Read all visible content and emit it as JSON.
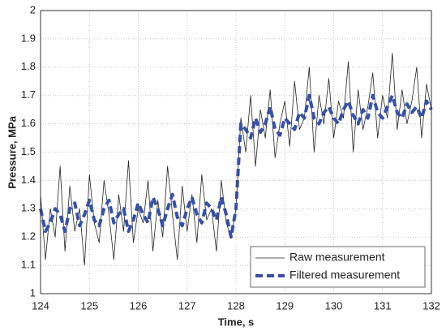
{
  "chart_data": {
    "type": "line",
    "x_label": "Time, s",
    "y_label": "Pressure, MPa",
    "x": [
      124,
      124.1,
      124.2,
      124.3,
      124.4,
      124.5,
      124.6,
      124.7,
      124.8,
      124.9,
      125,
      125.1,
      125.2,
      125.3,
      125.4,
      125.5,
      125.6,
      125.7,
      125.8,
      125.9,
      126,
      126.1,
      126.2,
      126.3,
      126.4,
      126.5,
      126.6,
      126.7,
      126.8,
      126.9,
      127,
      127.1,
      127.2,
      127.3,
      127.4,
      127.5,
      127.6,
      127.7,
      127.8,
      127.9,
      128,
      128.1,
      128.2,
      128.3,
      128.4,
      128.5,
      128.6,
      128.7,
      128.8,
      128.9,
      129,
      129.1,
      129.2,
      129.3,
      129.4,
      129.5,
      129.6,
      129.7,
      129.8,
      129.9,
      130,
      130.1,
      130.2,
      130.3,
      130.4,
      130.5,
      130.6,
      130.7,
      130.8,
      130.9,
      131,
      131.1,
      131.2,
      131.3,
      131.4,
      131.5,
      131.6,
      131.7,
      131.8,
      131.9,
      132
    ],
    "series": [
      {
        "name": "Raw measurement",
        "color": "#222222",
        "style": "solid",
        "values": [
          1.35,
          1.12,
          1.3,
          1.2,
          1.45,
          1.15,
          1.38,
          1.22,
          1.3,
          1.1,
          1.42,
          1.25,
          1.18,
          1.4,
          1.28,
          1.12,
          1.35,
          1.22,
          1.47,
          1.18,
          1.3,
          1.25,
          1.4,
          1.15,
          1.33,
          1.2,
          1.45,
          1.28,
          1.12,
          1.38,
          1.22,
          1.35,
          1.18,
          1.42,
          1.26,
          1.3,
          1.15,
          1.4,
          1.25,
          1.2,
          1.3,
          1.62,
          1.5,
          1.7,
          1.45,
          1.65,
          1.55,
          1.72,
          1.48,
          1.6,
          1.68,
          1.52,
          1.75,
          1.58,
          1.62,
          1.8,
          1.5,
          1.7,
          1.6,
          1.76,
          1.55,
          1.68,
          1.62,
          1.82,
          1.5,
          1.72,
          1.58,
          1.66,
          1.78,
          1.55,
          1.7,
          1.62,
          1.85,
          1.58,
          1.72,
          1.6,
          1.68,
          1.8,
          1.55,
          1.74,
          1.65
        ]
      },
      {
        "name": "Filtered measurement",
        "color": "#3550a8",
        "style": "dashed",
        "values": [
          1.3,
          1.22,
          1.25,
          1.3,
          1.28,
          1.22,
          1.3,
          1.32,
          1.24,
          1.28,
          1.33,
          1.26,
          1.24,
          1.3,
          1.33,
          1.25,
          1.28,
          1.3,
          1.22,
          1.26,
          1.32,
          1.28,
          1.25,
          1.34,
          1.3,
          1.24,
          1.3,
          1.35,
          1.27,
          1.24,
          1.3,
          1.34,
          1.28,
          1.25,
          1.32,
          1.3,
          1.26,
          1.34,
          1.28,
          1.2,
          1.3,
          1.6,
          1.58,
          1.55,
          1.62,
          1.57,
          1.6,
          1.66,
          1.58,
          1.56,
          1.62,
          1.6,
          1.58,
          1.64,
          1.62,
          1.7,
          1.62,
          1.6,
          1.64,
          1.66,
          1.62,
          1.6,
          1.65,
          1.68,
          1.63,
          1.6,
          1.65,
          1.62,
          1.7,
          1.64,
          1.62,
          1.66,
          1.7,
          1.64,
          1.62,
          1.67,
          1.64,
          1.66,
          1.62,
          1.68,
          1.65
        ]
      }
    ],
    "xlim": [
      124,
      132
    ],
    "xticks": [
      124,
      125,
      126,
      127,
      128,
      129,
      130,
      131,
      132
    ],
    "ylim": [
      1,
      2
    ],
    "yticks": [
      1,
      1.1,
      1.2,
      1.3,
      1.4,
      1.5,
      1.6,
      1.7,
      1.8,
      1.9,
      2
    ],
    "grid": true,
    "legend": "lower right"
  }
}
